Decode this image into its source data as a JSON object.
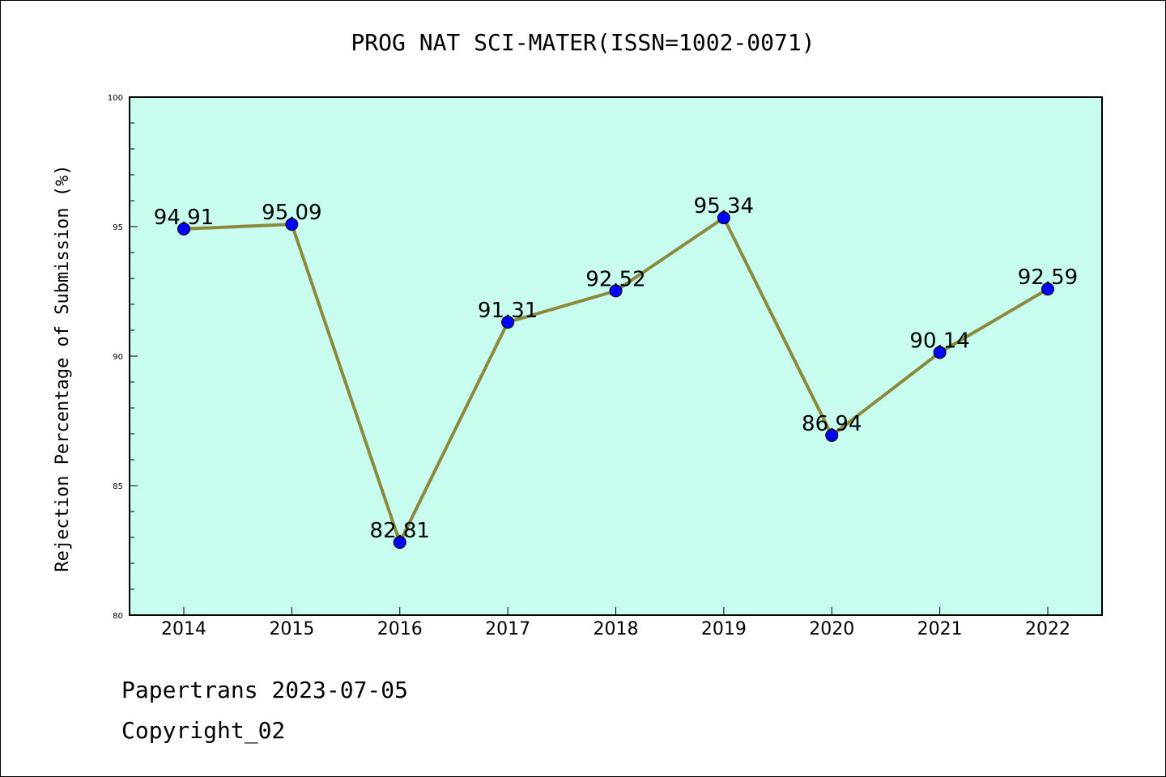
{
  "chart_data": {
    "type": "line",
    "title": "PROG NAT SCI-MATER(ISSN=1002-0071)",
    "xlabel": "",
    "ylabel": "Rejection Percentage of Submission (%)",
    "categories": [
      "2014",
      "2015",
      "2016",
      "2017",
      "2018",
      "2019",
      "2020",
      "2021",
      "2022"
    ],
    "values": [
      94.91,
      95.09,
      82.81,
      91.31,
      92.52,
      95.34,
      86.94,
      90.14,
      92.59
    ],
    "data_labels": [
      "94.91",
      "95.09",
      "82.81",
      "91.31",
      "92.52",
      "95.34",
      "86.94",
      "90.14",
      "92.59"
    ],
    "ylim": [
      80,
      100
    ],
    "yticks": [
      80,
      85,
      90,
      95,
      100
    ],
    "grid": false,
    "colors": {
      "plot_background": "#c8fcee",
      "line": "#8b8a3c",
      "marker": "#0000ff"
    }
  },
  "footer": {
    "line1": "Papertrans 2023-07-05",
    "line2": "Copyright_02"
  }
}
